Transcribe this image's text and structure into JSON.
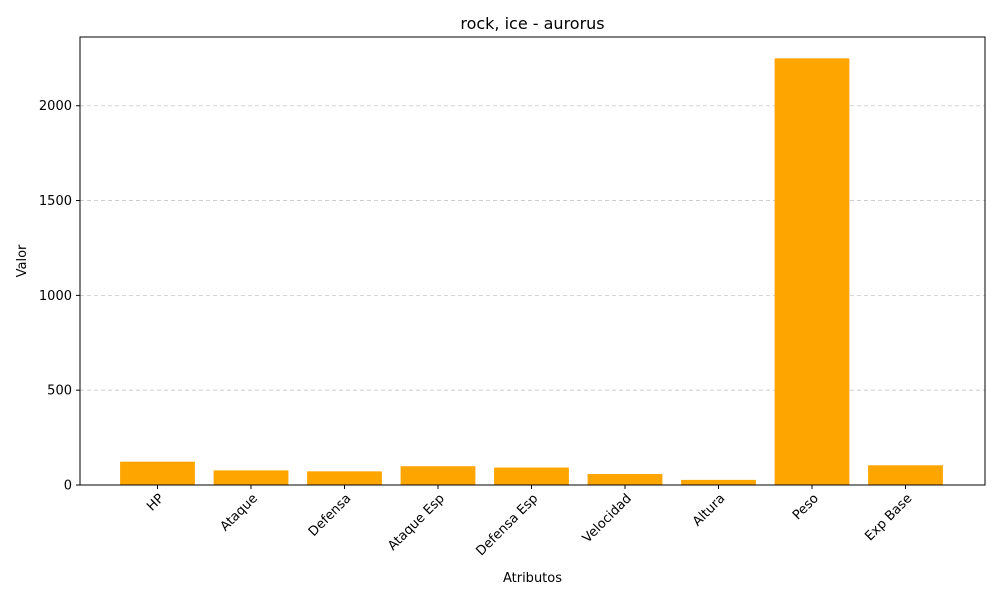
{
  "chart_data": {
    "type": "bar",
    "title": "rock, ice - aurorus",
    "xlabel": "Atributos",
    "ylabel": "Valor",
    "categories": [
      "HP",
      "Ataque",
      "Defensa",
      "Ataque Esp",
      "Defensa Esp",
      "Velocidad",
      "Altura",
      "Peso",
      "Exp Base"
    ],
    "values": [
      123,
      77,
      72,
      99,
      92,
      58,
      27,
      2250,
      104
    ],
    "ylim": [
      0,
      2362.5
    ],
    "yticks": [
      0,
      500,
      1000,
      1500,
      2000
    ],
    "grid": "y-dashed",
    "bar_color": "#FFA500",
    "legend": "none"
  }
}
